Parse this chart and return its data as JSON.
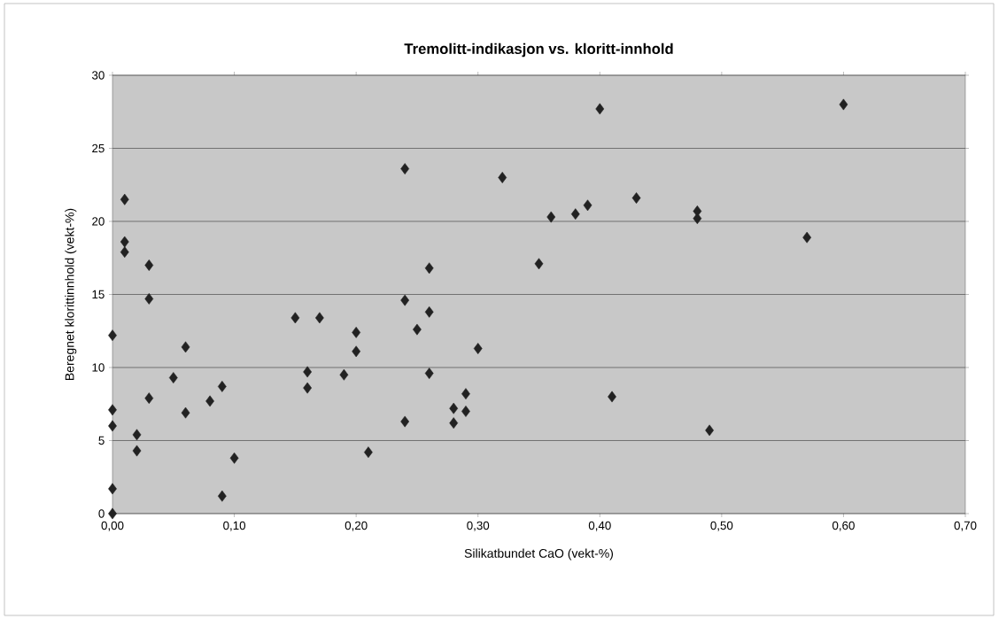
{
  "chart_data": {
    "type": "scatter",
    "title": "Tremolitt-indikasjon vs. kloritt-innhold",
    "xlabel": "Silikatbundet CaO (vekt-%)",
    "ylabel": "Beregnet klorittinnhold  (vekt-%)",
    "x": [
      0,
      0,
      0,
      0,
      0,
      0.01,
      0.01,
      0.01,
      0.03,
      0.03,
      0.03,
      0.02,
      0.02,
      0.05,
      0.06,
      0.06,
      0.08,
      0.09,
      0.09,
      0.1,
      0.15,
      0.17,
      0.16,
      0.16,
      0.19,
      0.2,
      0.2,
      0.21,
      0.24,
      0.24,
      0.24,
      0.26,
      0.26,
      0.25,
      0.26,
      0.3,
      0.29,
      0.28,
      0.29,
      0.28,
      0.32,
      0.4,
      0.35,
      0.36,
      0.38,
      0.39,
      0.43,
      0.48,
      0.48,
      0.41,
      0.49,
      0.6,
      0.57
    ],
    "values": [
      0,
      1.7,
      6.0,
      7.1,
      12.2,
      21.5,
      18.6,
      17.9,
      17.0,
      14.7,
      7.9,
      5.4,
      4.3,
      9.3,
      11.4,
      6.9,
      7.7,
      8.7,
      1.2,
      3.8,
      13.4,
      13.4,
      9.7,
      8.6,
      9.5,
      12.4,
      11.1,
      4.2,
      23.6,
      14.6,
      6.3,
      16.8,
      13.8,
      12.6,
      9.6,
      11.3,
      8.2,
      7.2,
      7.0,
      6.2,
      23.0,
      27.7,
      17.1,
      20.3,
      20.5,
      21.1,
      21.6,
      20.7,
      20.2,
      8.0,
      5.7,
      28.0,
      18.9
    ],
    "color": "#222222",
    "marker": "diamond",
    "grid": "y",
    "xlim": [
      0,
      0.7
    ],
    "ylim": [
      0,
      30
    ],
    "xticks": [
      {
        "value": 0,
        "label": "0,00"
      },
      {
        "value": 0.1,
        "label": "0,10"
      },
      {
        "value": 0.2,
        "label": "0,20"
      },
      {
        "value": 0.3,
        "label": "0,30"
      },
      {
        "value": 0.4,
        "label": "0,40"
      },
      {
        "value": 0.5,
        "label": "0,50"
      },
      {
        "value": 0.6,
        "label": "0,60"
      },
      {
        "value": 0.7,
        "label": "0,70"
      }
    ],
    "yticks": [
      0,
      5,
      10,
      15,
      20,
      25,
      30
    ]
  }
}
